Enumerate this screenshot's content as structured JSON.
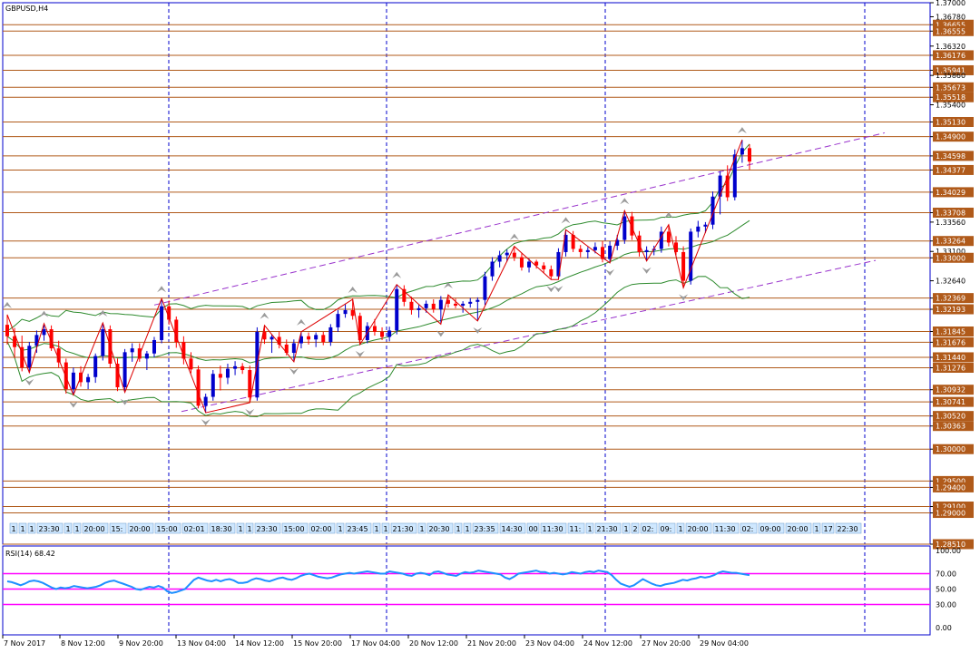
{
  "chart_data": {
    "type": "candlestick",
    "symbol_label": "GBPUSD,H4",
    "colors": {
      "bull": "#0000cc",
      "bear": "#ff0000",
      "level_line": "#b05a1a",
      "level_label_bg": "#b05a1a",
      "channel": "#9933cc",
      "bollinger": "#2e8b2e",
      "zigzag": "#dd0000",
      "vgrid": "#0000cc",
      "rsi_line": "#1e90ff",
      "rsi_level": "#ff00ff",
      "axis": "#0000cc"
    },
    "price_axis": {
      "min": 1.2851,
      "max": 1.37,
      "tick_labels": [
        "1.37000",
        "1.36780",
        "1.36655",
        "1.36555",
        "1.36320",
        "1.36176",
        "1.35941",
        "1.35860",
        "1.35673",
        "1.35518",
        "1.35400",
        "1.35130",
        "1.34900",
        "1.34598",
        "1.34377",
        "1.34029",
        "1.33708",
        "1.33560",
        "1.33264",
        "1.33100",
        "1.33000",
        "1.32640",
        "1.32369",
        "1.32193",
        "1.31845",
        "1.31676",
        "1.31440",
        "1.31276",
        "1.30932",
        "1.30741",
        "1.30520",
        "1.30363",
        "1.30000",
        "1.29500",
        "1.29400",
        "1.29100",
        "1.29000",
        "1.28510"
      ],
      "highlighted_levels": [
        1.36655,
        1.36555,
        1.36176,
        1.35941,
        1.35673,
        1.35518,
        1.3513,
        1.349,
        1.34598,
        1.34377,
        1.34029,
        1.33708,
        1.33264,
        1.33,
        1.32369,
        1.32193,
        1.31845,
        1.31676,
        1.3144,
        1.31276,
        1.30932,
        1.30741,
        1.3052,
        1.30363,
        1.3,
        1.295,
        1.294,
        1.291,
        1.29,
        1.2851
      ]
    },
    "date_axis_labels": [
      "7 Nov 2017",
      "8 Nov 12:00",
      "9 Nov 20:00",
      "13 Nov 04:00",
      "14 Nov 12:00",
      "15 Nov 20:00",
      "17 Nov 04:00",
      "20 Nov 12:00",
      "21 Nov 20:00",
      "23 Nov 04:00",
      "24 Nov 12:00",
      "27 Nov 20:00",
      "29 Nov 04:00"
    ],
    "candles": [
      {
        "o": 1.3195,
        "h": 1.3211,
        "l": 1.3164,
        "c": 1.3177
      },
      {
        "o": 1.3177,
        "h": 1.319,
        "l": 1.3143,
        "c": 1.316
      },
      {
        "o": 1.316,
        "h": 1.3178,
        "l": 1.3122,
        "c": 1.3128
      },
      {
        "o": 1.3128,
        "h": 1.3168,
        "l": 1.312,
        "c": 1.3162
      },
      {
        "o": 1.3162,
        "h": 1.3186,
        "l": 1.3151,
        "c": 1.3179
      },
      {
        "o": 1.3179,
        "h": 1.3197,
        "l": 1.317,
        "c": 1.3188
      },
      {
        "o": 1.3188,
        "h": 1.3194,
        "l": 1.3154,
        "c": 1.3158
      },
      {
        "o": 1.3158,
        "h": 1.317,
        "l": 1.3128,
        "c": 1.3136
      },
      {
        "o": 1.3136,
        "h": 1.3142,
        "l": 1.3087,
        "c": 1.3094
      },
      {
        "o": 1.3094,
        "h": 1.3128,
        "l": 1.3085,
        "c": 1.312
      },
      {
        "o": 1.312,
        "h": 1.313,
        "l": 1.3098,
        "c": 1.3105
      },
      {
        "o": 1.3105,
        "h": 1.3118,
        "l": 1.3094,
        "c": 1.3113
      },
      {
        "o": 1.3113,
        "h": 1.315,
        "l": 1.3104,
        "c": 1.3146
      },
      {
        "o": 1.3146,
        "h": 1.3198,
        "l": 1.3139,
        "c": 1.3188
      },
      {
        "o": 1.3188,
        "h": 1.3194,
        "l": 1.3127,
        "c": 1.3134
      },
      {
        "o": 1.3134,
        "h": 1.3142,
        "l": 1.3091,
        "c": 1.3097
      },
      {
        "o": 1.3097,
        "h": 1.3157,
        "l": 1.3089,
        "c": 1.3152
      },
      {
        "o": 1.3152,
        "h": 1.3166,
        "l": 1.3137,
        "c": 1.3158
      },
      {
        "o": 1.3158,
        "h": 1.3166,
        "l": 1.3137,
        "c": 1.3142
      },
      {
        "o": 1.3142,
        "h": 1.3154,
        "l": 1.3124,
        "c": 1.315
      },
      {
        "o": 1.315,
        "h": 1.3176,
        "l": 1.3144,
        "c": 1.3171
      },
      {
        "o": 1.3171,
        "h": 1.3236,
        "l": 1.3166,
        "c": 1.3224
      },
      {
        "o": 1.3224,
        "h": 1.3233,
        "l": 1.3195,
        "c": 1.3203
      },
      {
        "o": 1.3203,
        "h": 1.3208,
        "l": 1.3159,
        "c": 1.3168
      },
      {
        "o": 1.3168,
        "h": 1.3177,
        "l": 1.3133,
        "c": 1.3142
      },
      {
        "o": 1.3142,
        "h": 1.3152,
        "l": 1.3119,
        "c": 1.3125
      },
      {
        "o": 1.3125,
        "h": 1.3131,
        "l": 1.3064,
        "c": 1.3068
      },
      {
        "o": 1.3068,
        "h": 1.3087,
        "l": 1.3057,
        "c": 1.3082
      },
      {
        "o": 1.3082,
        "h": 1.3124,
        "l": 1.3076,
        "c": 1.3118
      },
      {
        "o": 1.3118,
        "h": 1.3131,
        "l": 1.3092,
        "c": 1.3112
      },
      {
        "o": 1.3112,
        "h": 1.3134,
        "l": 1.3102,
        "c": 1.3126
      },
      {
        "o": 1.3126,
        "h": 1.3138,
        "l": 1.3116,
        "c": 1.313
      },
      {
        "o": 1.313,
        "h": 1.3135,
        "l": 1.3118,
        "c": 1.3124
      },
      {
        "o": 1.3124,
        "h": 1.3131,
        "l": 1.3073,
        "c": 1.3081
      },
      {
        "o": 1.3081,
        "h": 1.3191,
        "l": 1.3076,
        "c": 1.3184
      },
      {
        "o": 1.3184,
        "h": 1.3194,
        "l": 1.3165,
        "c": 1.3172
      },
      {
        "o": 1.3172,
        "h": 1.318,
        "l": 1.3151,
        "c": 1.3176
      },
      {
        "o": 1.3176,
        "h": 1.3184,
        "l": 1.3158,
        "c": 1.3164
      },
      {
        "o": 1.3164,
        "h": 1.3172,
        "l": 1.3147,
        "c": 1.3151
      },
      {
        "o": 1.3151,
        "h": 1.3172,
        "l": 1.3137,
        "c": 1.3166
      },
      {
        "o": 1.3166,
        "h": 1.3184,
        "l": 1.3158,
        "c": 1.3177
      },
      {
        "o": 1.3177,
        "h": 1.3183,
        "l": 1.3164,
        "c": 1.3172
      },
      {
        "o": 1.3172,
        "h": 1.3183,
        "l": 1.316,
        "c": 1.3179
      },
      {
        "o": 1.3179,
        "h": 1.3184,
        "l": 1.3163,
        "c": 1.3168
      },
      {
        "o": 1.3168,
        "h": 1.3196,
        "l": 1.3162,
        "c": 1.3191
      },
      {
        "o": 1.3191,
        "h": 1.3218,
        "l": 1.3184,
        "c": 1.3212
      },
      {
        "o": 1.3212,
        "h": 1.3228,
        "l": 1.3206,
        "c": 1.3218
      },
      {
        "o": 1.3218,
        "h": 1.3235,
        "l": 1.3203,
        "c": 1.3209
      },
      {
        "o": 1.3209,
        "h": 1.3214,
        "l": 1.3164,
        "c": 1.3171
      },
      {
        "o": 1.3171,
        "h": 1.3199,
        "l": 1.3166,
        "c": 1.3193
      },
      {
        "o": 1.3193,
        "h": 1.3204,
        "l": 1.3178,
        "c": 1.3184
      },
      {
        "o": 1.3184,
        "h": 1.3191,
        "l": 1.3171,
        "c": 1.3176
      },
      {
        "o": 1.3176,
        "h": 1.3192,
        "l": 1.3169,
        "c": 1.3186
      },
      {
        "o": 1.3186,
        "h": 1.3258,
        "l": 1.318,
        "c": 1.3251
      },
      {
        "o": 1.3251,
        "h": 1.3257,
        "l": 1.3224,
        "c": 1.3231
      },
      {
        "o": 1.3231,
        "h": 1.3239,
        "l": 1.3211,
        "c": 1.3218
      },
      {
        "o": 1.3218,
        "h": 1.3226,
        "l": 1.3206,
        "c": 1.3221
      },
      {
        "o": 1.3221,
        "h": 1.3233,
        "l": 1.3214,
        "c": 1.3228
      },
      {
        "o": 1.3228,
        "h": 1.3235,
        "l": 1.3214,
        "c": 1.3219
      },
      {
        "o": 1.3219,
        "h": 1.324,
        "l": 1.3196,
        "c": 1.3234
      },
      {
        "o": 1.3234,
        "h": 1.3242,
        "l": 1.3222,
        "c": 1.3228
      },
      {
        "o": 1.3228,
        "h": 1.3236,
        "l": 1.3221,
        "c": 1.3225
      },
      {
        "o": 1.3225,
        "h": 1.3232,
        "l": 1.3214,
        "c": 1.3228
      },
      {
        "o": 1.3228,
        "h": 1.3237,
        "l": 1.3222,
        "c": 1.3231
      },
      {
        "o": 1.3231,
        "h": 1.3238,
        "l": 1.3201,
        "c": 1.3234
      },
      {
        "o": 1.3234,
        "h": 1.3278,
        "l": 1.3226,
        "c": 1.3271
      },
      {
        "o": 1.3271,
        "h": 1.3301,
        "l": 1.3264,
        "c": 1.3294
      },
      {
        "o": 1.3294,
        "h": 1.3311,
        "l": 1.3285,
        "c": 1.3304
      },
      {
        "o": 1.3304,
        "h": 1.3313,
        "l": 1.3294,
        "c": 1.3308
      },
      {
        "o": 1.3308,
        "h": 1.3318,
        "l": 1.3295,
        "c": 1.3301
      },
      {
        "o": 1.3301,
        "h": 1.3307,
        "l": 1.328,
        "c": 1.3285
      },
      {
        "o": 1.3285,
        "h": 1.3299,
        "l": 1.3277,
        "c": 1.3294
      },
      {
        "o": 1.3294,
        "h": 1.3297,
        "l": 1.3283,
        "c": 1.3288
      },
      {
        "o": 1.3288,
        "h": 1.3293,
        "l": 1.3276,
        "c": 1.3282
      },
      {
        "o": 1.3282,
        "h": 1.3288,
        "l": 1.3266,
        "c": 1.3271
      },
      {
        "o": 1.3271,
        "h": 1.3315,
        "l": 1.3266,
        "c": 1.3309
      },
      {
        "o": 1.3309,
        "h": 1.3344,
        "l": 1.3302,
        "c": 1.3336
      },
      {
        "o": 1.3336,
        "h": 1.3342,
        "l": 1.3309,
        "c": 1.3314
      },
      {
        "o": 1.3314,
        "h": 1.332,
        "l": 1.3301,
        "c": 1.3309
      },
      {
        "o": 1.3309,
        "h": 1.3317,
        "l": 1.3299,
        "c": 1.3312
      },
      {
        "o": 1.3312,
        "h": 1.3324,
        "l": 1.3307,
        "c": 1.3317
      },
      {
        "o": 1.3317,
        "h": 1.3326,
        "l": 1.3293,
        "c": 1.3298
      },
      {
        "o": 1.3298,
        "h": 1.3326,
        "l": 1.3292,
        "c": 1.3319
      },
      {
        "o": 1.3319,
        "h": 1.3336,
        "l": 1.3312,
        "c": 1.3328
      },
      {
        "o": 1.3328,
        "h": 1.3374,
        "l": 1.3322,
        "c": 1.3365
      },
      {
        "o": 1.3365,
        "h": 1.3372,
        "l": 1.3328,
        "c": 1.3335
      },
      {
        "o": 1.3335,
        "h": 1.3342,
        "l": 1.3302,
        "c": 1.3309
      },
      {
        "o": 1.3309,
        "h": 1.3318,
        "l": 1.3295,
        "c": 1.3312
      },
      {
        "o": 1.3312,
        "h": 1.3319,
        "l": 1.3304,
        "c": 1.3314
      },
      {
        "o": 1.3314,
        "h": 1.3349,
        "l": 1.3308,
        "c": 1.3341
      },
      {
        "o": 1.3341,
        "h": 1.3352,
        "l": 1.3318,
        "c": 1.3324
      },
      {
        "o": 1.3324,
        "h": 1.3334,
        "l": 1.3304,
        "c": 1.3309
      },
      {
        "o": 1.3309,
        "h": 1.3318,
        "l": 1.3253,
        "c": 1.3264
      },
      {
        "o": 1.3264,
        "h": 1.3346,
        "l": 1.3258,
        "c": 1.3341
      },
      {
        "o": 1.3341,
        "h": 1.3358,
        "l": 1.3332,
        "c": 1.3349
      },
      {
        "o": 1.3349,
        "h": 1.3356,
        "l": 1.3339,
        "c": 1.3352
      },
      {
        "o": 1.3352,
        "h": 1.3404,
        "l": 1.3345,
        "c": 1.3396
      },
      {
        "o": 1.3396,
        "h": 1.3436,
        "l": 1.3368,
        "c": 1.3429
      },
      {
        "o": 1.3429,
        "h": 1.3445,
        "l": 1.3389,
        "c": 1.3395
      },
      {
        "o": 1.3395,
        "h": 1.347,
        "l": 1.339,
        "c": 1.3462
      },
      {
        "o": 1.3462,
        "h": 1.3485,
        "l": 1.3449,
        "c": 1.3472
      },
      {
        "o": 1.3472,
        "h": 1.3478,
        "l": 1.3438,
        "c": 1.3451
      }
    ],
    "time_stamps": [
      "1",
      "1",
      "1",
      "23:30",
      "1",
      "1",
      "20:00",
      "15:",
      "20:00",
      "15:00",
      "02:01",
      "18:30",
      "1",
      "1",
      "23:30",
      "15:00",
      "02:00",
      "1",
      "23:45",
      "1",
      "1",
      "21:30",
      "1",
      "20:30",
      "1",
      "1",
      "23:35",
      "14:30",
      "00",
      "11:30",
      "11:",
      "1",
      "21:30",
      "1",
      "2",
      "02:",
      "09:",
      "1",
      "20:00",
      "11:30",
      "02:",
      "09:00",
      "20:00",
      "1",
      "17",
      "22:30"
    ],
    "rsi": {
      "label": "RSI(14) 68.42",
      "levels": [
        70,
        50,
        30
      ],
      "axis_labels": [
        "100.00",
        "70.00",
        "50.00",
        "30.00",
        "0.00"
      ],
      "values": [
        60,
        59,
        57,
        55,
        57,
        60,
        61,
        60,
        58,
        55,
        52,
        50,
        52,
        51,
        52,
        54,
        53,
        52,
        51,
        52,
        53,
        55,
        58,
        60,
        61,
        59,
        57,
        55,
        53,
        50,
        49,
        51,
        53,
        52,
        54,
        52,
        47,
        45,
        46,
        48,
        50,
        56,
        62,
        65,
        63,
        61,
        60,
        62,
        60,
        62,
        63,
        61,
        58,
        58,
        59,
        62,
        64,
        63,
        61,
        60,
        62,
        64,
        65,
        63,
        62,
        64,
        67,
        69,
        70,
        68,
        66,
        65,
        64,
        65,
        67,
        69,
        70,
        71,
        70,
        71,
        72,
        73,
        72,
        71,
        70,
        70,
        73,
        72,
        71,
        70,
        68,
        67,
        70,
        71,
        70,
        68,
        72,
        73,
        71,
        69,
        68,
        67,
        70,
        72,
        71,
        72,
        74,
        73,
        72,
        71,
        70,
        69,
        65,
        63,
        66,
        70,
        71,
        72,
        73,
        74,
        72,
        72,
        70,
        71,
        70,
        69,
        70,
        72,
        71,
        70,
        72,
        73,
        72,
        74,
        73,
        72,
        68,
        62,
        57,
        55,
        53,
        55,
        59,
        63,
        60,
        57,
        55,
        54,
        56,
        57,
        58,
        60,
        62,
        61,
        63,
        64,
        66,
        65,
        66,
        68,
        71,
        73,
        72,
        71,
        71,
        70,
        69,
        68
      ]
    }
  }
}
